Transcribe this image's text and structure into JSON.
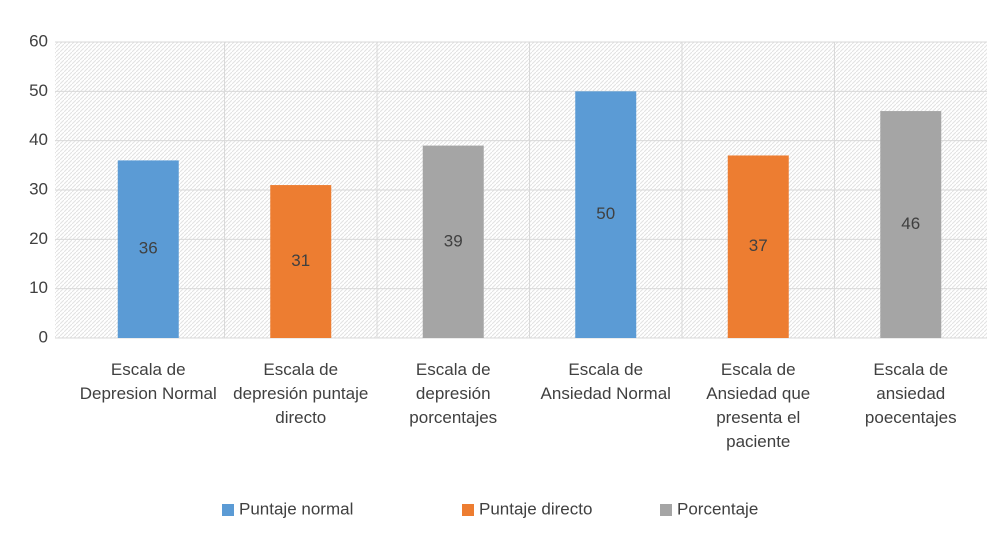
{
  "chart_data": {
    "type": "bar",
    "categories": [
      "Escala de Depresion Normal",
      "Escala de depresión puntaje directo",
      "Escala de depresión porcentajes",
      "Escala de Ansiedad Normal",
      "Escala de Ansiedad que presenta el paciente",
      "Escala de ansiedad poecentajes"
    ],
    "series": [
      {
        "name": "Puntaje normal",
        "color": "#5b9bd5",
        "values": [
          36,
          null,
          null,
          50,
          null,
          null
        ]
      },
      {
        "name": "Puntaje directo",
        "color": "#ed7d31",
        "values": [
          null,
          31,
          null,
          null,
          37,
          null
        ]
      },
      {
        "name": "Porcentaje",
        "color": "#a5a5a5",
        "values": [
          null,
          null,
          39,
          null,
          null,
          46
        ]
      }
    ],
    "ylim": [
      0,
      60
    ],
    "yticks": [
      0,
      10,
      20,
      30,
      40,
      50,
      60
    ],
    "grid": true,
    "legend": "bottom"
  }
}
